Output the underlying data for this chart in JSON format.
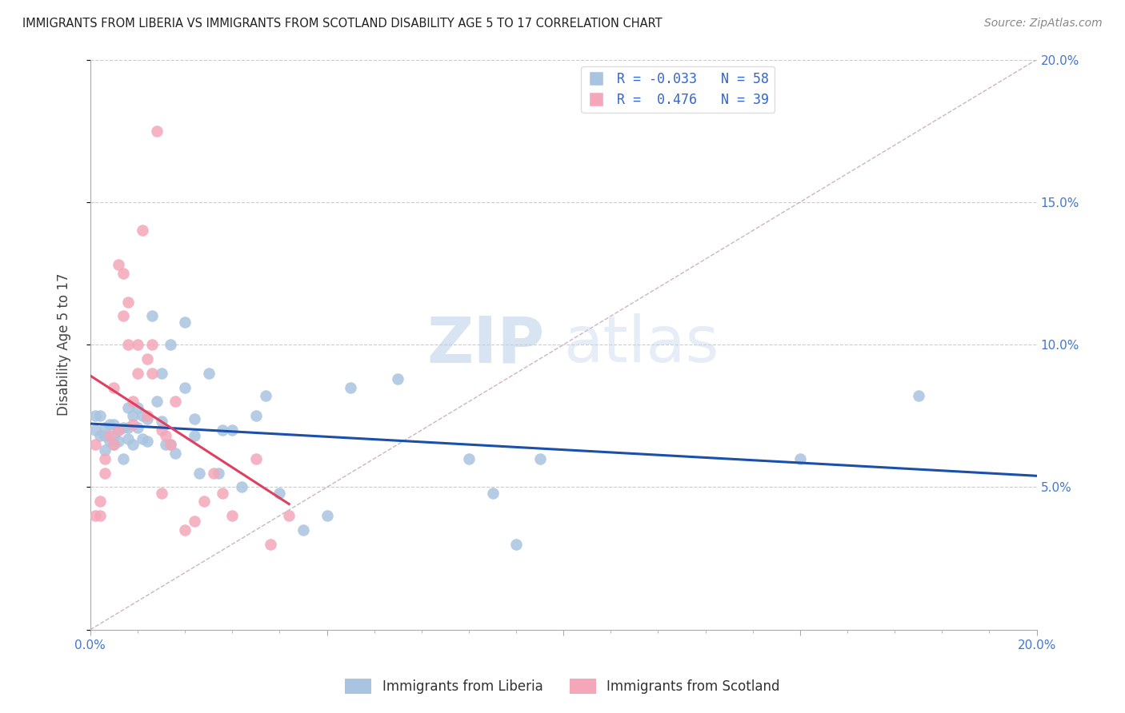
{
  "title": "IMMIGRANTS FROM LIBERIA VS IMMIGRANTS FROM SCOTLAND DISABILITY AGE 5 TO 17 CORRELATION CHART",
  "source": "Source: ZipAtlas.com",
  "ylabel": "Disability Age 5 to 17",
  "xlim": [
    0.0,
    0.2
  ],
  "ylim": [
    0.0,
    0.2
  ],
  "major_ticks": [
    0.0,
    0.05,
    0.1,
    0.15,
    0.2
  ],
  "liberia_color": "#a8c4e0",
  "scotland_color": "#f4a7b9",
  "liberia_R": -0.033,
  "liberia_N": 58,
  "scotland_R": 0.476,
  "scotland_N": 39,
  "liberia_line_color": "#1a4faa",
  "scotland_line_color": "#e04060",
  "diagonal_color": "#ccaabb",
  "watermark_zip": "ZIP",
  "watermark_atlas": "atlas",
  "liberia_x": [
    0.001,
    0.001,
    0.002,
    0.002,
    0.003,
    0.003,
    0.003,
    0.004,
    0.004,
    0.005,
    0.005,
    0.005,
    0.006,
    0.006,
    0.007,
    0.007,
    0.008,
    0.008,
    0.008,
    0.009,
    0.009,
    0.01,
    0.01,
    0.011,
    0.011,
    0.012,
    0.012,
    0.013,
    0.014,
    0.015,
    0.015,
    0.016,
    0.017,
    0.017,
    0.018,
    0.02,
    0.02,
    0.022,
    0.022,
    0.023,
    0.025,
    0.027,
    0.028,
    0.03,
    0.032,
    0.035,
    0.037,
    0.04,
    0.045,
    0.05,
    0.055,
    0.065,
    0.08,
    0.085,
    0.09,
    0.095,
    0.15,
    0.175
  ],
  "liberia_y": [
    0.075,
    0.07,
    0.075,
    0.068,
    0.071,
    0.068,
    0.063,
    0.072,
    0.066,
    0.072,
    0.068,
    0.065,
    0.07,
    0.066,
    0.071,
    0.06,
    0.078,
    0.071,
    0.067,
    0.075,
    0.065,
    0.078,
    0.071,
    0.075,
    0.067,
    0.074,
    0.066,
    0.11,
    0.08,
    0.09,
    0.073,
    0.065,
    0.1,
    0.065,
    0.062,
    0.108,
    0.085,
    0.068,
    0.074,
    0.055,
    0.09,
    0.055,
    0.07,
    0.07,
    0.05,
    0.075,
    0.082,
    0.048,
    0.035,
    0.04,
    0.085,
    0.088,
    0.06,
    0.048,
    0.03,
    0.06,
    0.06,
    0.082
  ],
  "scotland_x": [
    0.001,
    0.001,
    0.002,
    0.002,
    0.003,
    0.003,
    0.004,
    0.005,
    0.005,
    0.006,
    0.006,
    0.007,
    0.007,
    0.008,
    0.008,
    0.009,
    0.009,
    0.01,
    0.01,
    0.011,
    0.012,
    0.012,
    0.013,
    0.013,
    0.014,
    0.015,
    0.015,
    0.016,
    0.017,
    0.018,
    0.02,
    0.022,
    0.024,
    0.026,
    0.028,
    0.03,
    0.035,
    0.038,
    0.042
  ],
  "scotland_y": [
    0.065,
    0.04,
    0.045,
    0.04,
    0.06,
    0.055,
    0.068,
    0.085,
    0.065,
    0.128,
    0.07,
    0.125,
    0.11,
    0.115,
    0.1,
    0.08,
    0.072,
    0.1,
    0.09,
    0.14,
    0.095,
    0.075,
    0.1,
    0.09,
    0.175,
    0.07,
    0.048,
    0.068,
    0.065,
    0.08,
    0.035,
    0.038,
    0.045,
    0.055,
    0.048,
    0.04,
    0.06,
    0.03,
    0.04
  ]
}
